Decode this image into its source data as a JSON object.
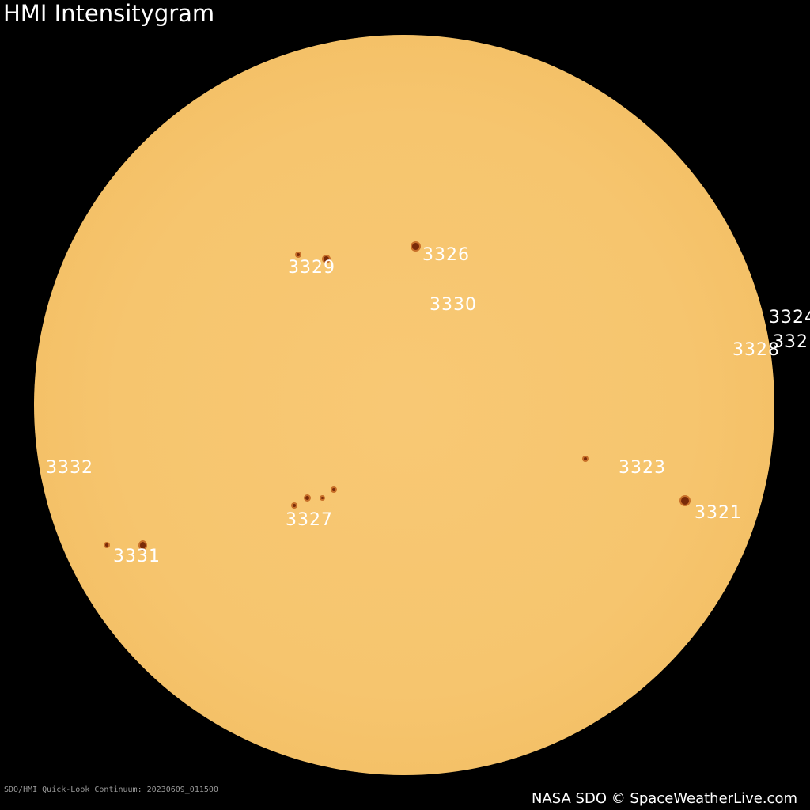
{
  "title": "HMI Intensitygram",
  "caption": "SDO/HMI Quick-Look Continuum: 20230609_011500",
  "credit": "NASA SDO © SpaceWeatherLive.com",
  "colors": {
    "sun": "#f6c56e",
    "background": "#000000",
    "spot": "#7a2a08"
  },
  "regions": [
    "3329",
    "3326",
    "3330",
    "3324",
    "332",
    "3328",
    "3332",
    "3323",
    "3327",
    "3321",
    "3331"
  ]
}
